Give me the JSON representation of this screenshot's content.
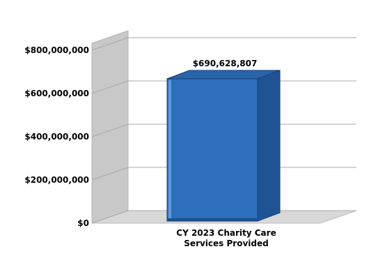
{
  "chart_data": {
    "type": "bar",
    "style": "3d",
    "categories": [
      "CY 2023 Charity Care\nServices Provided"
    ],
    "values": [
      690628807
    ],
    "data_labels": [
      "$690,628,807"
    ],
    "y_ticks": [
      {
        "value": 0,
        "label": "$0"
      },
      {
        "value": 200000000,
        "label": "$200,000,000"
      },
      {
        "value": 400000000,
        "label": "$400,000,000"
      },
      {
        "value": 600000000,
        "label": "$600,000,000"
      },
      {
        "value": 800000000,
        "label": "$800,000,000"
      }
    ],
    "ylim": [
      0,
      800000000
    ],
    "grid": true,
    "legend": "none",
    "colors": {
      "bar_front": "#2d6fbd",
      "bar_side": "#1f5494",
      "bar_top": "#2a64ad",
      "bar_highlight": "#6fa2dc",
      "wall": "#c8c8c8",
      "floor": "#d8d8d8",
      "grid": "#a8a8a8"
    }
  }
}
